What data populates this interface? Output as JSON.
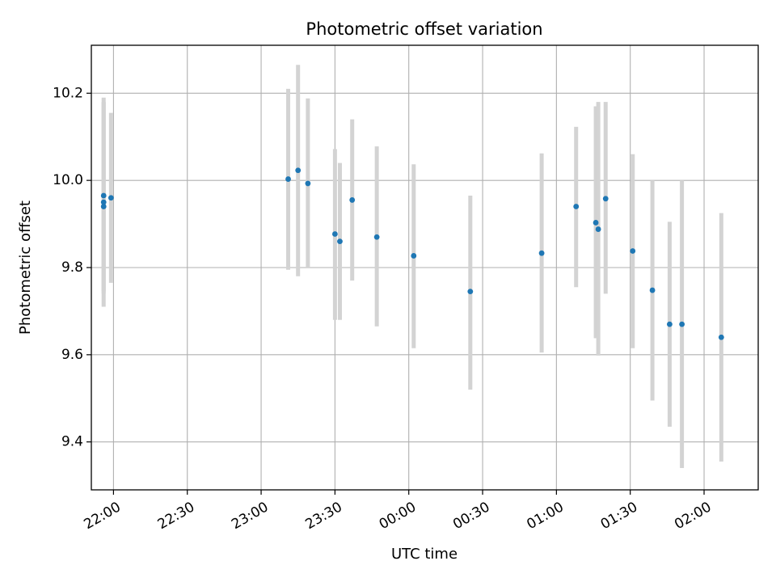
{
  "chart_data": {
    "type": "scatter",
    "title": "Photometric offset variation",
    "xlabel": "UTC time",
    "ylabel": "Photometric offset",
    "x_axis": {
      "kind": "time",
      "start": "21:51",
      "end": "02:22",
      "ticks": [
        "22:00",
        "22:30",
        "23:00",
        "23:30",
        "00:00",
        "00:30",
        "01:00",
        "01:30",
        "02:00"
      ],
      "tick_rotation_deg": 30
    },
    "y_axis": {
      "range": [
        9.29,
        10.31
      ],
      "ticks": [
        9.4,
        9.6,
        9.8,
        10.0,
        10.2
      ],
      "tick_labels": [
        "9.4",
        "9.6",
        "9.8",
        "10.0",
        "10.2"
      ]
    },
    "grid": true,
    "colors": {
      "point": "#1f77b4",
      "errorbar": "#d3d3d3",
      "grid": "#b0b0b0"
    },
    "points": [
      {
        "t": "21:56",
        "y": 9.965,
        "low": 9.745,
        "high": 10.19
      },
      {
        "t": "21:56",
        "y": 9.95,
        "low": 9.74,
        "high": 10.18
      },
      {
        "t": "21:56",
        "y": 9.94,
        "low": 9.71,
        "high": 10.18
      },
      {
        "t": "21:59",
        "y": 9.96,
        "low": 9.765,
        "high": 10.155
      },
      {
        "t": "23:11",
        "y": 10.003,
        "low": 9.795,
        "high": 10.21
      },
      {
        "t": "23:15",
        "y": 10.023,
        "low": 9.78,
        "high": 10.265
      },
      {
        "t": "23:19",
        "y": 9.993,
        "low": 9.8,
        "high": 10.188
      },
      {
        "t": "23:30",
        "y": 9.877,
        "low": 9.68,
        "high": 10.072
      },
      {
        "t": "23:32",
        "y": 9.86,
        "low": 9.68,
        "high": 10.04
      },
      {
        "t": "23:37",
        "y": 9.955,
        "low": 9.77,
        "high": 10.14
      },
      {
        "t": "23:47",
        "y": 9.87,
        "low": 9.665,
        "high": 10.078
      },
      {
        "t": "00:02",
        "y": 9.827,
        "low": 9.615,
        "high": 10.037
      },
      {
        "t": "00:25",
        "y": 9.745,
        "low": 9.52,
        "high": 9.965
      },
      {
        "t": "00:54",
        "y": 9.833,
        "low": 9.605,
        "high": 10.062
      },
      {
        "t": "01:08",
        "y": 9.94,
        "low": 9.755,
        "high": 10.123
      },
      {
        "t": "01:16",
        "y": 9.903,
        "low": 9.638,
        "high": 10.17
      },
      {
        "t": "01:17",
        "y": 9.888,
        "low": 9.598,
        "high": 10.18
      },
      {
        "t": "01:20",
        "y": 9.958,
        "low": 9.74,
        "high": 10.18
      },
      {
        "t": "01:31",
        "y": 9.838,
        "low": 9.615,
        "high": 10.06
      },
      {
        "t": "01:39",
        "y": 9.748,
        "low": 9.495,
        "high": 10.0
      },
      {
        "t": "01:46",
        "y": 9.67,
        "low": 9.435,
        "high": 9.905
      },
      {
        "t": "01:51",
        "y": 9.67,
        "low": 9.34,
        "high": 10.0
      },
      {
        "t": "02:07",
        "y": 9.64,
        "low": 9.355,
        "high": 9.925
      }
    ]
  }
}
